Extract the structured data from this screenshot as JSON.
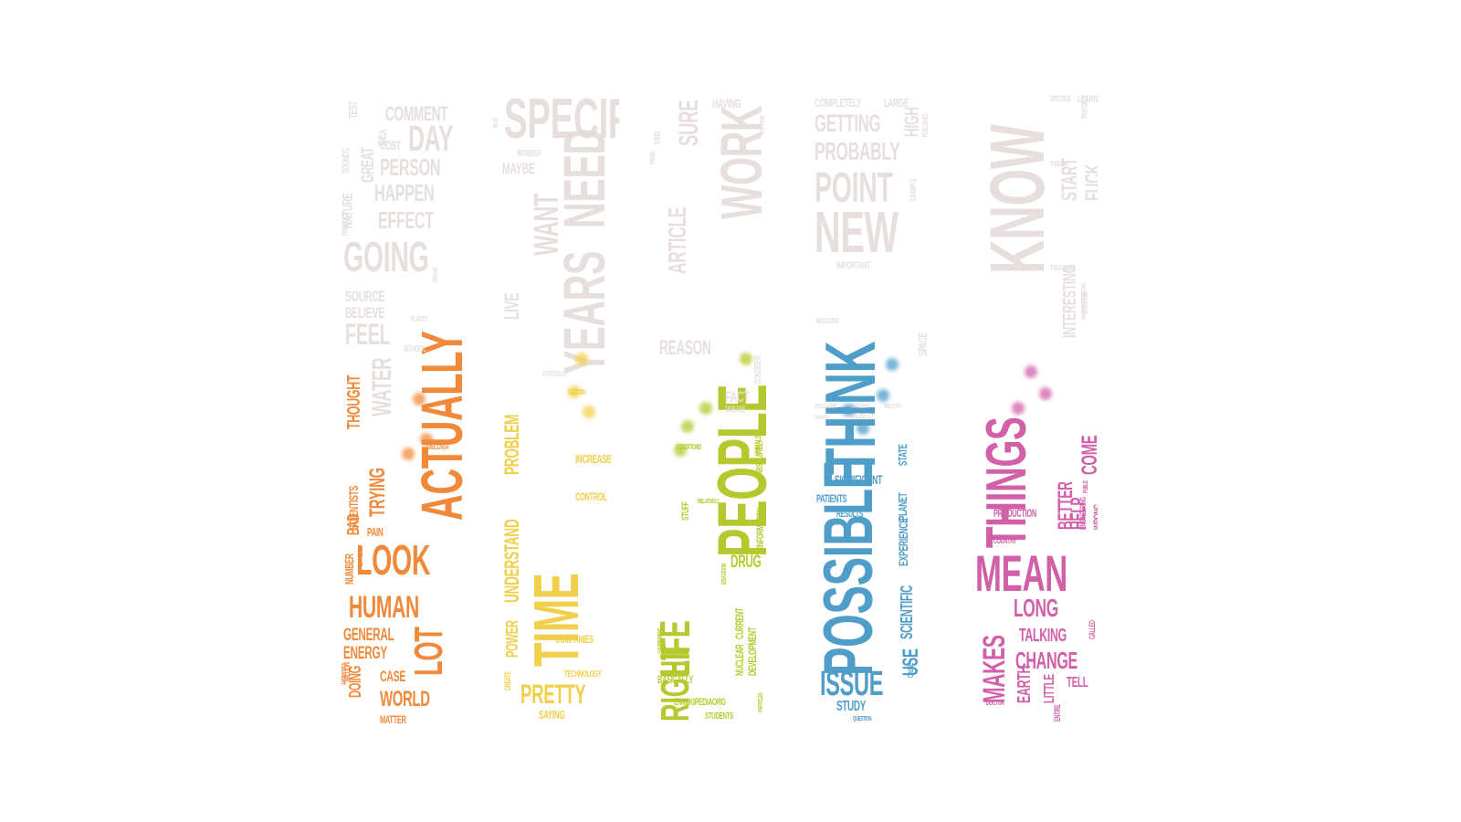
{
  "theme": {
    "faded": "#e4dcda",
    "orange": "#f08a3a",
    "yellow": "#f2cf4a",
    "green": "#b5c92e",
    "blue": "#4f9ec9",
    "pink": "#d260a9"
  },
  "tubes": [
    {
      "name": "orange",
      "fill_level": 0.52,
      "words": [
        "TEST",
        "COMMENT",
        "SOUNDS",
        "GREAT",
        "IDEA",
        "DAY",
        "COST",
        "PERSON",
        "NATURE",
        "HAPPEN",
        "PRODUCE",
        "EFFECT",
        "GOING",
        "ORGANIC",
        "SOURCE",
        "BELIEVE",
        "PLANTS",
        "FEEL",
        "ACTUALLY",
        "SCHOOL",
        "THOUGHT",
        "WATER",
        "SCIENTISTS",
        "DISCOVER",
        "TRYING",
        "BAD",
        "PAIN",
        "EXTREMELY",
        "NUMBER",
        "LOOK",
        "ANTIBIOTICS",
        "HUMAN",
        "GENERAL",
        "ENERGY",
        "LOT",
        "MILLION",
        "CASE",
        "DOING",
        "WORLD",
        "MATTER"
      ]
    },
    {
      "name": "yellow",
      "fill_level": 0.55,
      "words": [
        "READ",
        "SPECIFIC",
        "WONDER",
        "MAYBE",
        "WANT",
        "NEED",
        "YEARS",
        "LIVE",
        "PROBLEM",
        "ESPECIALLY",
        "CERTAIN",
        "INCREASE",
        "TIME",
        "CONTROL",
        "UNDERSTAND",
        "POWER",
        "COMPANIES",
        "TECHNOLOGY",
        "CREATE",
        "PRETTY",
        "SAYING"
      ]
    },
    {
      "name": "green",
      "fill_level": 0.5,
      "words": [
        "HAVING",
        "KIND",
        "FRIEND",
        "SURE",
        "RESPONSE",
        "ARTICLE",
        "WORK",
        "PEOPLE",
        "REASON",
        "CONSIDER",
        "ANIMALS",
        "FACT",
        "DISEASE",
        "CONDITIONS",
        "ABSOLUTELY",
        "INFORMATION",
        "STUFF",
        "RELATIVELY",
        "DEVELOPMENT",
        "DRUG",
        "EDUCATION",
        "LIFE",
        "CURRENT",
        "GOVERNMENT",
        "NUCLEAR",
        "RIGHT",
        "BASICALLY",
        "PARTICLES",
        "ENWIKIPEDIAORG",
        "STUDENTS"
      ]
    },
    {
      "name": "blue",
      "fill_level": 0.48,
      "words": [
        "COMPLETELY",
        "LARGE",
        "GETTING",
        "HIGH",
        "PUBLISHED",
        "PROBABLY",
        "POINT",
        "EXAMPLE",
        "NEW",
        "IMPORTANT",
        "THINK",
        "INCLUDING",
        "INTELLIGENT",
        "EFFICIENT",
        "INDUSTRY",
        "SPACE",
        "STATE",
        "PLANET",
        "THANKS",
        "DEFINITELY",
        "SIGNIFICANT",
        "EXPERIENCE",
        "RESULTS",
        "SCIENTIFIC",
        "POSSIBLE",
        "USE",
        "CAUSE",
        "ISSUE",
        "STUDY",
        "QUESTION",
        "PATIENTS"
      ]
    },
    {
      "name": "pink",
      "fill_level": 0.46,
      "words": [
        "SPECIES",
        "LEARN",
        "PHYSICS",
        "FUNDING",
        "START",
        "FUCK",
        "KNOW",
        "TREATMENT",
        "INTERESTING",
        "WWWYOUTUBECOM",
        "COURSE",
        "THINGS",
        "COME",
        "PUBLIC",
        "ENGINEERING",
        "BETTER",
        "HELP",
        "WRONG",
        "PRODUCTION",
        "COUNTRY",
        "MEAN",
        "LONG",
        "CALLED",
        "MAKES",
        "TALKING",
        "CHANGE",
        "EARTH",
        "LITTLE",
        "TELL",
        "DOCTOR",
        "ENTIRE"
      ]
    }
  ]
}
